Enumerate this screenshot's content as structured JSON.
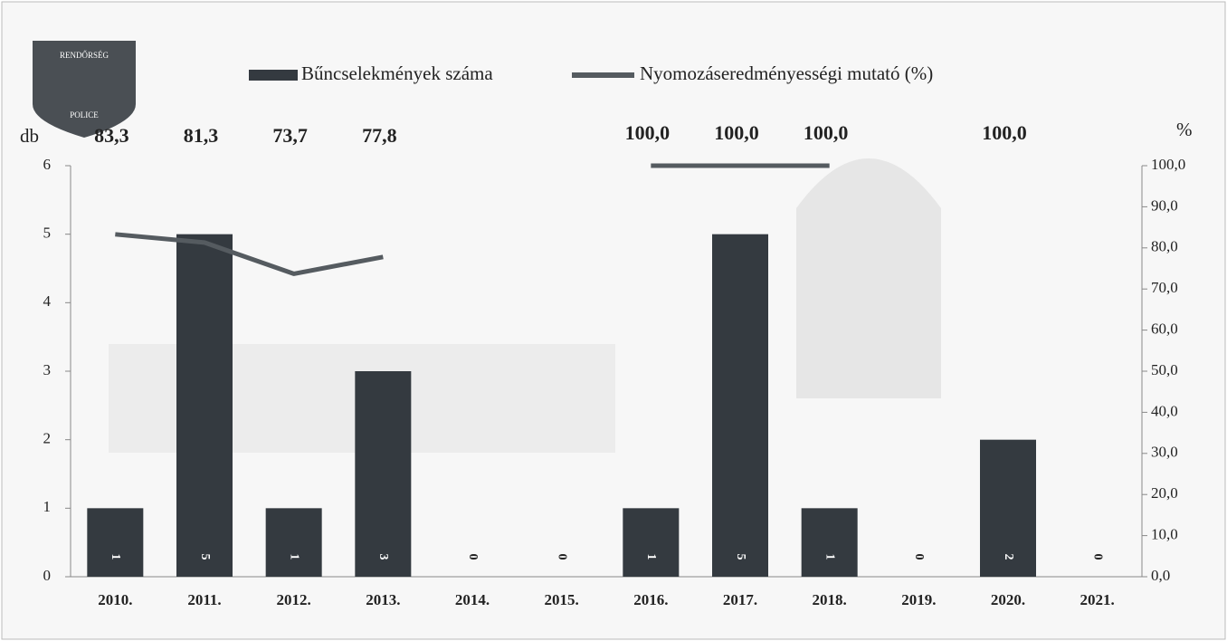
{
  "chart_data": {
    "type": "bar_line",
    "logo": {
      "top": "RENDŐRSÉG",
      "bottom": "POLICE"
    },
    "y_label": "db",
    "y2_label": "%",
    "categories": [
      "2010.",
      "2011.",
      "2012.",
      "2013.",
      "2014.",
      "2015.",
      "2016.",
      "2017.",
      "2018.",
      "2019.",
      "2020.",
      "2021."
    ],
    "series": [
      {
        "name": "Bűncselekmények száma",
        "color": "#343a40",
        "values": [
          1,
          5,
          1,
          3,
          0,
          0,
          1,
          5,
          1,
          0,
          2,
          0
        ]
      },
      {
        "name": "Nyomozáseredményességi mutató (%)",
        "color": "#555b60",
        "axis": "y2",
        "values": [
          83.3,
          81.3,
          73.7,
          77.8,
          null,
          null,
          100,
          100,
          100,
          null,
          100,
          null
        ],
        "value_labels": [
          "83,3",
          "81,3",
          "73,7",
          "77,8",
          null,
          null,
          "100,0",
          "100,0",
          "100,0",
          null,
          "100,0",
          null
        ]
      }
    ],
    "ylim": [
      0,
      6
    ],
    "yticks": [
      0,
      1,
      2,
      3,
      4,
      5,
      6
    ],
    "y2lim": [
      0,
      100
    ],
    "y2ticks": [
      {
        "value": 0,
        "label": "0,0"
      },
      {
        "value": 10,
        "label": "10,0"
      },
      {
        "value": 20,
        "label": "20,0"
      },
      {
        "value": 30,
        "label": "30,0"
      },
      {
        "value": 40,
        "label": "40,0"
      },
      {
        "value": 50,
        "label": "50,0"
      },
      {
        "value": 60,
        "label": "60,0"
      },
      {
        "value": 70,
        "label": "70,0"
      },
      {
        "value": 80,
        "label": "80,0"
      },
      {
        "value": 90,
        "label": "90,0"
      },
      {
        "value": 100,
        "label": "100,0"
      }
    ]
  }
}
